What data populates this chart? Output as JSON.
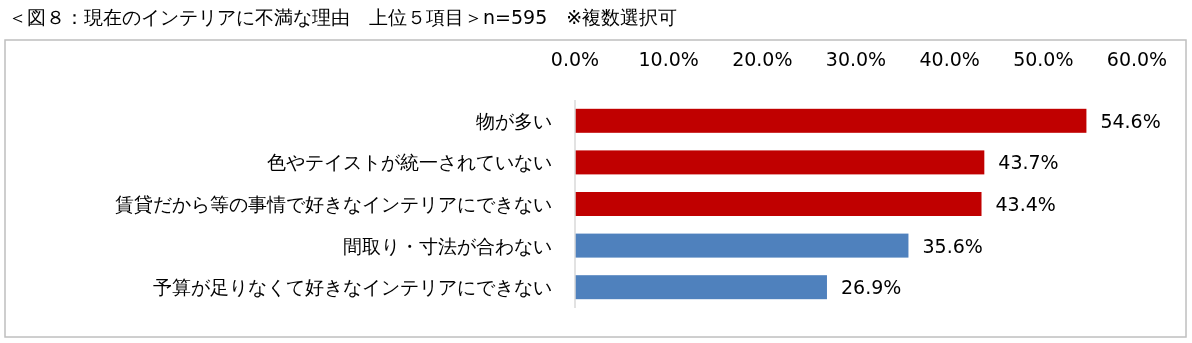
{
  "chart_data": {
    "type": "bar",
    "orientation": "horizontal",
    "title": "＜図８：現在のインテリアに不満な理由　上位５項目＞n=595　※複数選択可",
    "categories": [
      "物が多い",
      "色やテイストが統一されていない",
      "賃貸だから等の事情で好きなインテリアにできない",
      "間取り・寸法が合わない",
      "予算が足りなくて好きなインテリアにできない"
    ],
    "values": [
      54.6,
      43.7,
      43.4,
      35.6,
      26.9
    ],
    "colors": [
      "#c00000",
      "#c00000",
      "#c00000",
      "#4f81bd",
      "#4f81bd"
    ],
    "value_labels": [
      "54.6%",
      "43.7%",
      "43.4%",
      "35.6%",
      "26.9%"
    ],
    "xlim": [
      0,
      60
    ],
    "xticks": [
      {
        "value": 0,
        "label": "0.0%"
      },
      {
        "value": 10,
        "label": "10.0%"
      },
      {
        "value": 20,
        "label": "20.0%"
      },
      {
        "value": 30,
        "label": "30.0%"
      },
      {
        "value": 40,
        "label": "40.0%"
      },
      {
        "value": 50,
        "label": "50.0%"
      },
      {
        "value": 60,
        "label": "60.0%"
      }
    ]
  }
}
